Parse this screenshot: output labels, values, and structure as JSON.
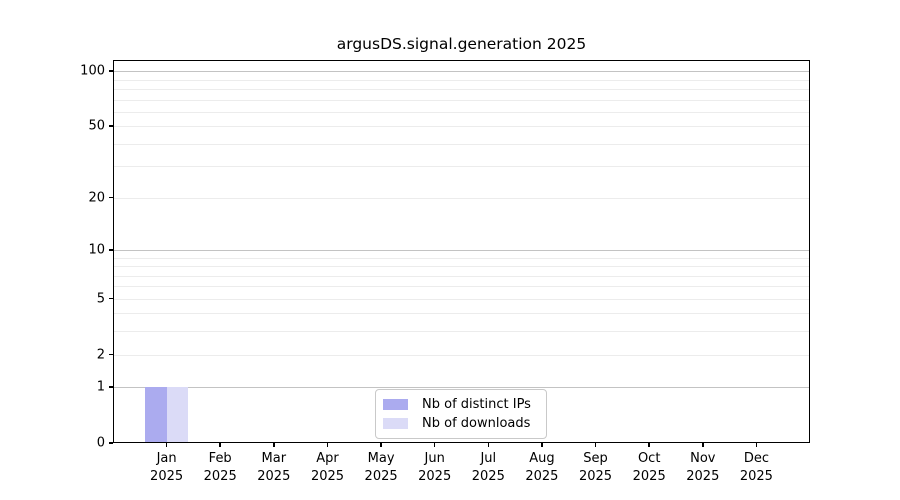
{
  "chart_data": {
    "type": "bar",
    "title": "argusDS.signal.generation 2025",
    "yscale": "log1p",
    "ylim": [
      0,
      115
    ],
    "grid": true,
    "legend_position": "lower-center-inside",
    "categories": [
      "Jan",
      "Feb",
      "Mar",
      "Apr",
      "May",
      "Jun",
      "Jul",
      "Aug",
      "Sep",
      "Oct",
      "Nov",
      "Dec"
    ],
    "category_year": "2025",
    "yticks": [
      0,
      1,
      2,
      5,
      10,
      20,
      50,
      100
    ],
    "major_gridlines": [
      1,
      10,
      100
    ],
    "minor_gridlines": [
      2,
      3,
      4,
      5,
      6,
      7,
      8,
      9,
      20,
      30,
      40,
      50,
      60,
      70,
      80,
      90
    ],
    "series": [
      {
        "name": "Nb of distinct IPs",
        "color": "#ababef",
        "values": [
          1,
          0,
          0,
          0,
          0,
          0,
          0,
          0,
          0,
          0,
          0,
          0
        ]
      },
      {
        "name": "Nb of downloads",
        "color": "#dbdbf7",
        "values": [
          1,
          0,
          0,
          0,
          0,
          0,
          0,
          0,
          0,
          0,
          0,
          0
        ]
      }
    ]
  }
}
